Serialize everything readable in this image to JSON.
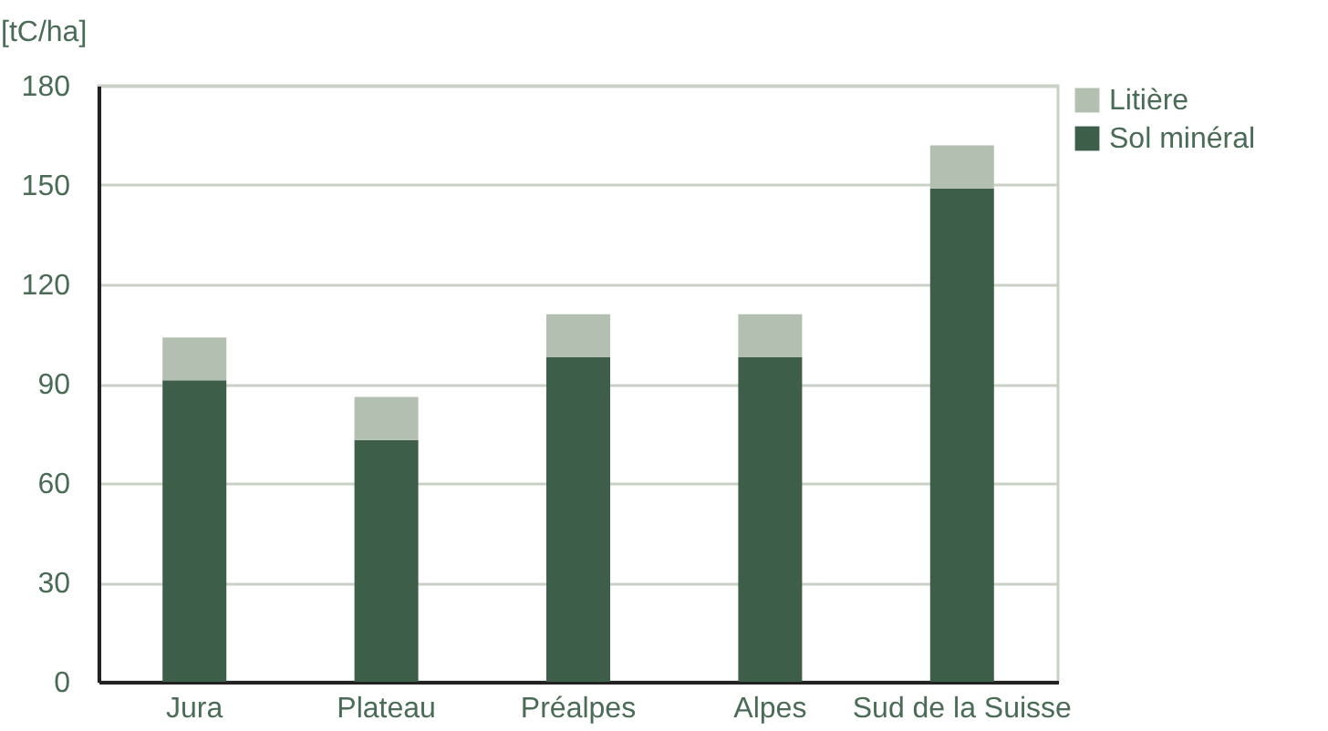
{
  "chart_data": {
    "type": "bar",
    "ylabel": "[tC/ha]",
    "categories": [
      "Jura",
      "Plateau",
      "Préalpes",
      "Alpes",
      "Sud de la Suisse"
    ],
    "series": [
      {
        "name": "Sol minéral",
        "color": "#3d5e48",
        "values": [
          91,
          73,
          98,
          98,
          149
        ]
      },
      {
        "name": "Litière",
        "color": "#b3bfb1",
        "values": [
          13,
          13,
          13,
          13,
          13
        ]
      }
    ],
    "stacked": true,
    "ylim": [
      0,
      180
    ],
    "yticks": [
      0,
      30,
      60,
      90,
      120,
      150,
      180
    ],
    "grid": "y",
    "legend": "top right"
  }
}
